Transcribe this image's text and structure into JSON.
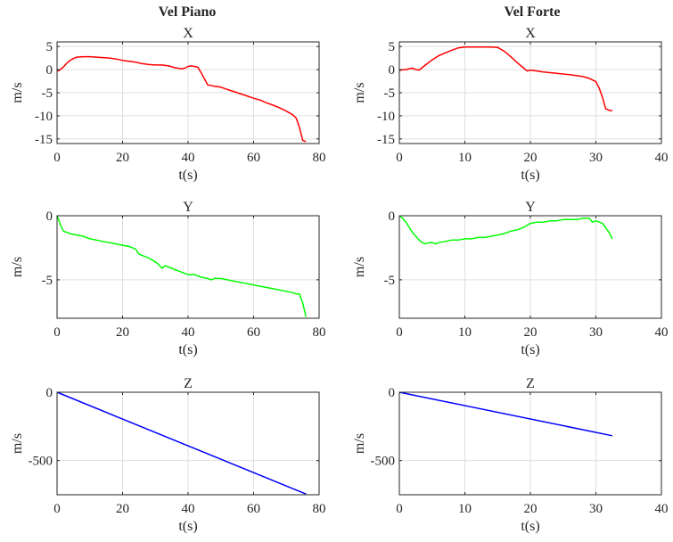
{
  "figure": {
    "column_titles": [
      "Vel Piano",
      "Vel Forte"
    ]
  },
  "chart_data": [
    {
      "type": "line",
      "column": "Vel Piano",
      "title": "X",
      "xlabel": "t(s)",
      "ylabel": "m/s",
      "xlim": [
        0,
        80
      ],
      "ylim": [
        -16,
        6
      ],
      "xticks": [
        0,
        20,
        40,
        60,
        80
      ],
      "yticks": [
        -15,
        -10,
        -5,
        0,
        5
      ],
      "grid": true,
      "series": [
        {
          "color": "#ff0000",
          "x": [
            0,
            0.5,
            1,
            2,
            3,
            4,
            5,
            6,
            8,
            10,
            12,
            14,
            16,
            18,
            20,
            22,
            24,
            26,
            28,
            30,
            32,
            34,
            36,
            38,
            39,
            40,
            41,
            42,
            43,
            44,
            45,
            46,
            48,
            50,
            52,
            55,
            58,
            60,
            62,
            64,
            66,
            68,
            70,
            72,
            73,
            74,
            75,
            76
          ],
          "y": [
            -0.3,
            -0.2,
            0,
            0.6,
            1.4,
            2.0,
            2.4,
            2.7,
            2.8,
            2.8,
            2.7,
            2.6,
            2.5,
            2.3,
            2.0,
            1.8,
            1.6,
            1.3,
            1.1,
            1.0,
            1.0,
            0.8,
            0.4,
            0.2,
            0.3,
            0.7,
            0.8,
            0.7,
            0.5,
            -0.7,
            -2.0,
            -3.3,
            -3.6,
            -3.8,
            -4.3,
            -5.0,
            -5.7,
            -6.2,
            -6.6,
            -7.2,
            -7.7,
            -8.3,
            -9.0,
            -9.8,
            -10.5,
            -12.5,
            -15.3,
            -15.6
          ]
        }
      ]
    },
    {
      "type": "line",
      "column": "Vel Forte",
      "title": "X",
      "xlabel": "t(s)",
      "ylabel": "m/s",
      "xlim": [
        0,
        40
      ],
      "ylim": [
        -16,
        6
      ],
      "xticks": [
        0,
        10,
        20,
        30,
        40
      ],
      "yticks": [
        -15,
        -10,
        -5,
        0,
        5
      ],
      "grid": true,
      "series": [
        {
          "color": "#ff0000",
          "x": [
            0,
            0.5,
            1,
            1.5,
            2,
            2.5,
            3,
            4,
            5,
            6,
            7,
            8,
            9,
            10,
            11,
            12,
            13,
            14,
            15,
            16,
            17,
            18,
            19,
            19.5,
            20,
            21,
            22,
            24,
            26,
            28,
            29,
            30,
            30.5,
            31,
            31.5,
            32,
            32.5
          ],
          "y": [
            -0.2,
            0,
            0,
            0.2,
            0.3,
            0,
            -0.1,
            1.0,
            2.1,
            3.0,
            3.6,
            4.2,
            4.7,
            4.9,
            4.9,
            4.9,
            4.9,
            4.9,
            4.8,
            4.0,
            2.8,
            1.5,
            0.3,
            -0.3,
            -0.1,
            -0.3,
            -0.5,
            -0.8,
            -1.1,
            -1.5,
            -1.9,
            -2.6,
            -4.0,
            -6.0,
            -8.5,
            -8.8,
            -8.9
          ]
        }
      ]
    },
    {
      "type": "line",
      "column": "Vel Piano",
      "title": "Y",
      "xlabel": "t(s)",
      "ylabel": "m/s",
      "xlim": [
        0,
        80
      ],
      "ylim": [
        -8,
        0
      ],
      "xticks": [
        0,
        20,
        40,
        60,
        80
      ],
      "yticks": [
        -5,
        0
      ],
      "grid": true,
      "series": [
        {
          "color": "#00ff00",
          "x": [
            0,
            0.5,
            1,
            2,
            3,
            4,
            6,
            8,
            10,
            12,
            14,
            16,
            18,
            20,
            22,
            23,
            24,
            25,
            26,
            28,
            30,
            31,
            32,
            33,
            34,
            36,
            38,
            40,
            42,
            44,
            46,
            47,
            48,
            50,
            52,
            54,
            56,
            58,
            60,
            62,
            64,
            66,
            68,
            70,
            72,
            73,
            74,
            75,
            76
          ],
          "y": [
            0,
            -0.3,
            -0.7,
            -1.2,
            -1.3,
            -1.4,
            -1.5,
            -1.6,
            -1.8,
            -1.9,
            -2.0,
            -2.1,
            -2.2,
            -2.3,
            -2.4,
            -2.5,
            -2.6,
            -3.0,
            -3.1,
            -3.3,
            -3.6,
            -3.8,
            -4.1,
            -3.9,
            -4.0,
            -4.2,
            -4.4,
            -4.6,
            -4.6,
            -4.8,
            -4.9,
            -5.0,
            -4.9,
            -4.9,
            -5.0,
            -5.1,
            -5.2,
            -5.3,
            -5.4,
            -5.5,
            -5.6,
            -5.7,
            -5.8,
            -5.9,
            -6.0,
            -6.1,
            -6.1,
            -6.8,
            -7.9
          ]
        }
      ]
    },
    {
      "type": "line",
      "column": "Vel Forte",
      "title": "Y",
      "xlabel": "t(s)",
      "ylabel": "m/s",
      "xlim": [
        0,
        40
      ],
      "ylim": [
        -8,
        0
      ],
      "xticks": [
        0,
        10,
        20,
        30,
        40
      ],
      "yticks": [
        -5,
        0
      ],
      "grid": true,
      "series": [
        {
          "color": "#00ff00",
          "x": [
            0,
            0.5,
            1,
            1.5,
            2,
            2.5,
            3,
            3.5,
            4,
            4.5,
            5,
            5.5,
            6,
            7,
            8,
            9,
            10,
            11,
            12,
            13,
            14,
            15,
            16,
            17,
            18,
            19,
            20,
            21,
            22,
            23,
            24,
            25,
            26,
            27,
            28,
            29,
            29.5,
            30,
            31,
            32,
            32.5
          ],
          "y": [
            0,
            -0.2,
            -0.5,
            -0.9,
            -1.3,
            -1.6,
            -1.9,
            -2.1,
            -2.2,
            -2.1,
            -2.1,
            -2.2,
            -2.1,
            -2.0,
            -1.9,
            -1.9,
            -1.8,
            -1.8,
            -1.7,
            -1.7,
            -1.6,
            -1.5,
            -1.4,
            -1.2,
            -1.1,
            -0.9,
            -0.6,
            -0.5,
            -0.5,
            -0.4,
            -0.4,
            -0.3,
            -0.3,
            -0.3,
            -0.2,
            -0.2,
            -0.5,
            -0.4,
            -0.6,
            -1.3,
            -1.8
          ]
        }
      ]
    },
    {
      "type": "line",
      "column": "Vel Piano",
      "title": "Z",
      "xlabel": "t(s)",
      "ylabel": "m/s",
      "xlim": [
        0,
        80
      ],
      "ylim": [
        -750,
        0
      ],
      "xticks": [
        0,
        20,
        40,
        60,
        80
      ],
      "yticks": [
        -500,
        0
      ],
      "grid": true,
      "series": [
        {
          "color": "#0000ff",
          "x": [
            0,
            76
          ],
          "y": [
            0,
            -745
          ]
        }
      ]
    },
    {
      "type": "line",
      "column": "Vel Forte",
      "title": "Z",
      "xlabel": "t(s)",
      "ylabel": "m/s",
      "xlim": [
        0,
        40
      ],
      "ylim": [
        -750,
        0
      ],
      "xticks": [
        0,
        10,
        20,
        30,
        40
      ],
      "yticks": [
        -500,
        0
      ],
      "grid": true,
      "series": [
        {
          "color": "#0000ff",
          "x": [
            0,
            32.5
          ],
          "y": [
            0,
            -318
          ]
        }
      ]
    }
  ]
}
